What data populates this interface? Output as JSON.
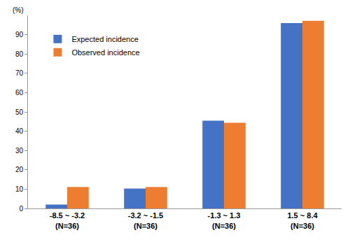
{
  "chart_data": {
    "type": "bar",
    "y_label": "(%)",
    "categories": [
      "-8.5 ~ -3.2\n(N=36)",
      "-3.2 ~ -1.5\n(N=36)",
      "-1.3 ~ 1.3\n(N=36)",
      "1.5 ~ 8.4\n(N=36)"
    ],
    "series": [
      {
        "name": "Expected incidence",
        "color": "#4472c4",
        "values": [
          2,
          10.3,
          45.5,
          96
        ]
      },
      {
        "name": "Observed incidence",
        "color": "#ed7d31",
        "values": [
          11.1,
          11.1,
          44.4,
          97.2
        ]
      }
    ],
    "ylim": [
      0,
      100
    ],
    "yticks": [
      0,
      10,
      20,
      30,
      40,
      50,
      60,
      70,
      80,
      90
    ],
    "grid": false,
    "legend": "upper left"
  }
}
